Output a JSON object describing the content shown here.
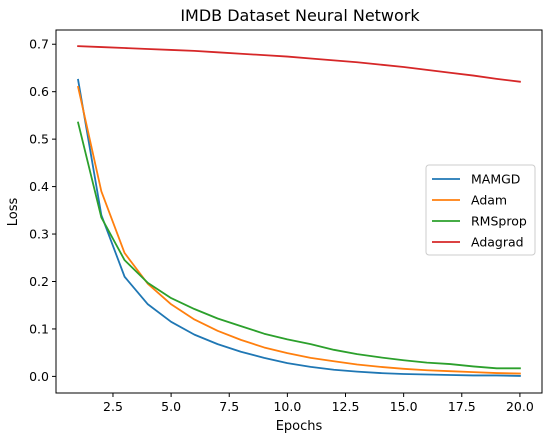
{
  "chart_data": {
    "type": "line",
    "title": "IMDB Dataset Neural Network",
    "xlabel": "Epochs",
    "ylabel": "Loss",
    "xlim": [
      0.05,
      20.95
    ],
    "ylim": [
      -0.035,
      0.73
    ],
    "xticks": [
      2.5,
      5.0,
      7.5,
      10.0,
      12.5,
      15.0,
      17.5,
      20.0
    ],
    "xtick_labels": [
      "2.5",
      "5.0",
      "7.5",
      "10.0",
      "12.5",
      "15.0",
      "17.5",
      "20.0"
    ],
    "yticks": [
      0.0,
      0.1,
      0.2,
      0.3,
      0.4,
      0.5,
      0.6,
      0.7
    ],
    "ytick_labels": [
      "0.0",
      "0.1",
      "0.2",
      "0.3",
      "0.4",
      "0.5",
      "0.6",
      "0.7"
    ],
    "grid": false,
    "legend_position": "center-right",
    "x": [
      1,
      2,
      3,
      4,
      5,
      6,
      7,
      8,
      9,
      10,
      11,
      12,
      13,
      14,
      15,
      16,
      17,
      18,
      19,
      20
    ],
    "series": [
      {
        "name": "MAMGD",
        "color": "#1f77b4",
        "values": [
          0.625,
          0.34,
          0.21,
          0.152,
          0.115,
          0.088,
          0.068,
          0.052,
          0.039,
          0.028,
          0.02,
          0.014,
          0.01,
          0.007,
          0.005,
          0.004,
          0.003,
          0.002,
          0.002,
          0.001
        ]
      },
      {
        "name": "Adam",
        "color": "#ff7f0e",
        "values": [
          0.61,
          0.39,
          0.26,
          0.195,
          0.152,
          0.12,
          0.096,
          0.077,
          0.061,
          0.049,
          0.039,
          0.032,
          0.025,
          0.02,
          0.016,
          0.013,
          0.011,
          0.009,
          0.007,
          0.006
        ]
      },
      {
        "name": "RMSprop",
        "color": "#2ca02c",
        "values": [
          0.535,
          0.335,
          0.245,
          0.197,
          0.165,
          0.142,
          0.122,
          0.106,
          0.09,
          0.078,
          0.068,
          0.056,
          0.047,
          0.04,
          0.034,
          0.029,
          0.026,
          0.021,
          0.017,
          0.017
        ]
      },
      {
        "name": "Adagrad",
        "color": "#d62728",
        "values": [
          0.696,
          0.694,
          0.692,
          0.69,
          0.688,
          0.686,
          0.683,
          0.68,
          0.677,
          0.674,
          0.67,
          0.666,
          0.662,
          0.657,
          0.652,
          0.646,
          0.64,
          0.634,
          0.627,
          0.621
        ]
      }
    ]
  }
}
